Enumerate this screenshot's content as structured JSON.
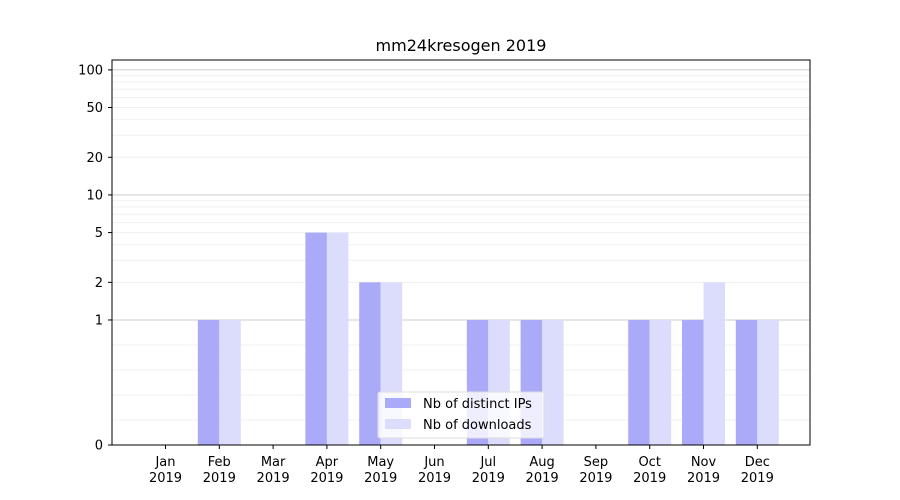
{
  "chart_data": {
    "type": "bar",
    "title": "mm24kresogen 2019",
    "categories": [
      "Jan\n2019",
      "Feb\n2019",
      "Mar\n2019",
      "Apr\n2019",
      "May\n2019",
      "Jun\n2019",
      "Jul\n2019",
      "Aug\n2019",
      "Sep\n2019",
      "Oct\n2019",
      "Nov\n2019",
      "Dec\n2019"
    ],
    "series": [
      {
        "name": "Nb of distinct IPs",
        "color": "#aaaaf8",
        "values": [
          0,
          1,
          0,
          5,
          2,
          0,
          1,
          1,
          0,
          1,
          1,
          1
        ]
      },
      {
        "name": "Nb of downloads",
        "color": "#dcdcfc",
        "values": [
          0,
          1,
          0,
          5,
          2,
          0,
          1,
          1,
          0,
          1,
          2,
          1
        ]
      }
    ],
    "yscale": "symlog",
    "yticks": [
      0,
      1,
      2,
      5,
      10,
      20,
      50,
      100
    ],
    "ylim": [
      0,
      120
    ],
    "grid": true,
    "legend_position": "lower-center"
  }
}
